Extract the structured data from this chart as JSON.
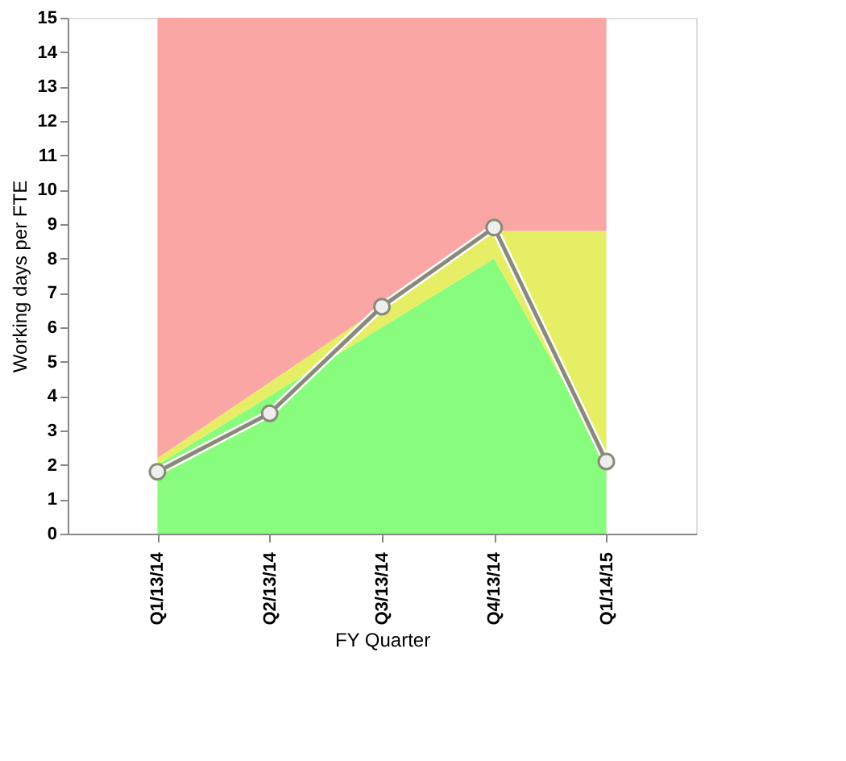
{
  "chart_data": {
    "type": "area",
    "stacked": true,
    "xlabel": "FY Quarter",
    "ylabel": "Working days per FTE",
    "categories": [
      "Q1/13/14",
      "Q2/13/14",
      "Q3/13/14",
      "Q4/13/14",
      "Q1/14/15"
    ],
    "ylim": [
      0,
      15
    ],
    "yticks": [
      0,
      1,
      2,
      3,
      4,
      5,
      6,
      7,
      8,
      9,
      10,
      11,
      12,
      13,
      14,
      15
    ],
    "grid": "x",
    "legend": false,
    "series": [
      {
        "color": "#88fc7c",
        "values": [
          2.0,
          4.0,
          6.0,
          8.0,
          2.2
        ]
      },
      {
        "color": "#e6ee66",
        "values": [
          0.2,
          0.4,
          0.6,
          0.8,
          6.6
        ]
      },
      {
        "color": "#f9a6a4",
        "values": [
          12.8,
          10.6,
          8.4,
          6.2,
          6.2
        ]
      },
      {
        "type": "line",
        "color": "#8a8a7a",
        "marker": "circle",
        "values": [
          1.8,
          3.5,
          6.6,
          8.9,
          2.1
        ]
      }
    ]
  }
}
